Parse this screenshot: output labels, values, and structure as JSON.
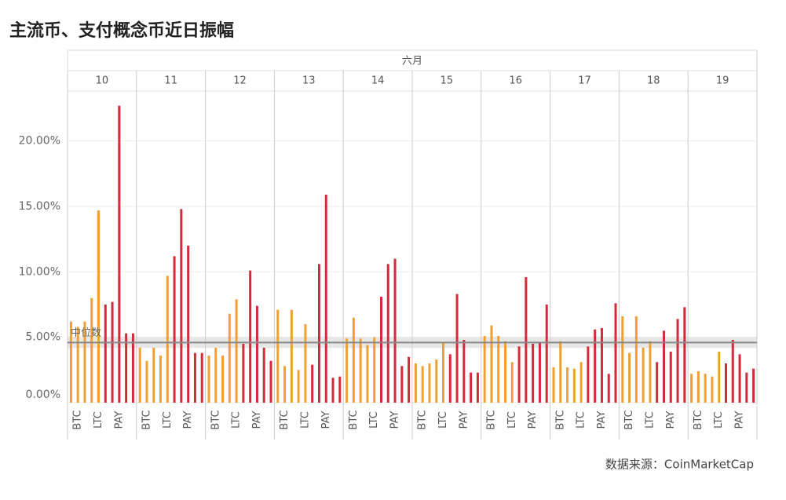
{
  "chart_data": {
    "type": "bar",
    "title": "主流币、支付概念币近日振幅",
    "group_header": "六月",
    "categories": [
      null,
      "BTC",
      null,
      null,
      "LTC",
      null,
      null,
      "PAY",
      null,
      null
    ],
    "colors": [
      "#f0a030",
      "#f0a030",
      "#f0a030",
      "#f0a030",
      "#f0a030",
      "#d42a3a",
      "#d42a3a",
      "#d42a3a",
      "#d42a3a",
      "#d42a3a"
    ],
    "panels": [
      {
        "label": "10",
        "values": [
          6.2,
          5.8,
          6.2,
          8.0,
          14.7,
          7.5,
          7.7,
          22.7,
          5.3,
          5.3
        ]
      },
      {
        "label": "11",
        "values": [
          4.2,
          3.2,
          4.2,
          3.6,
          9.7,
          11.2,
          14.8,
          12.0,
          3.8,
          3.8
        ]
      },
      {
        "label": "12",
        "values": [
          3.6,
          4.2,
          3.6,
          6.8,
          7.9,
          4.5,
          10.1,
          7.4,
          4.2,
          3.2
        ]
      },
      {
        "label": "13",
        "values": [
          7.1,
          2.8,
          7.1,
          2.5,
          6.0,
          2.9,
          10.6,
          15.9,
          1.9,
          2.0
        ]
      },
      {
        "label": "14",
        "values": [
          4.9,
          6.5,
          4.9,
          4.4,
          5.0,
          8.1,
          10.6,
          11.0,
          2.8,
          3.5
        ]
      },
      {
        "label": "15",
        "values": [
          3.0,
          2.8,
          3.0,
          3.3,
          4.6,
          3.7,
          8.3,
          4.8,
          2.3,
          2.3
        ]
      },
      {
        "label": "16",
        "values": [
          5.1,
          5.9,
          5.1,
          4.7,
          3.1,
          4.3,
          9.6,
          4.5,
          4.6,
          7.5
        ]
      },
      {
        "label": "17",
        "values": [
          2.7,
          4.7,
          2.7,
          2.6,
          3.1,
          4.3,
          5.6,
          5.7,
          2.2,
          7.6
        ]
      },
      {
        "label": "18",
        "values": [
          6.6,
          3.8,
          6.6,
          4.2,
          4.7,
          3.1,
          5.5,
          3.9,
          6.4,
          7.3
        ]
      },
      {
        "label": "19",
        "values": [
          2.2,
          2.4,
          2.2,
          2.0,
          3.9,
          3.0,
          4.8,
          3.7,
          2.3,
          2.6
        ]
      }
    ],
    "median": {
      "label": "中位数",
      "value": 4.6
    },
    "ylim": [
      0,
      23.7
    ],
    "yticks": [
      {
        "value": 0,
        "label": "0.00%"
      },
      {
        "value": 5,
        "label": "5.00%"
      },
      {
        "value": 10,
        "label": "10.00%"
      },
      {
        "value": 15,
        "label": "15.00%"
      },
      {
        "value": 20,
        "label": "20.00%"
      }
    ],
    "grid": true,
    "source": "数据来源：CoinMarketCap"
  }
}
